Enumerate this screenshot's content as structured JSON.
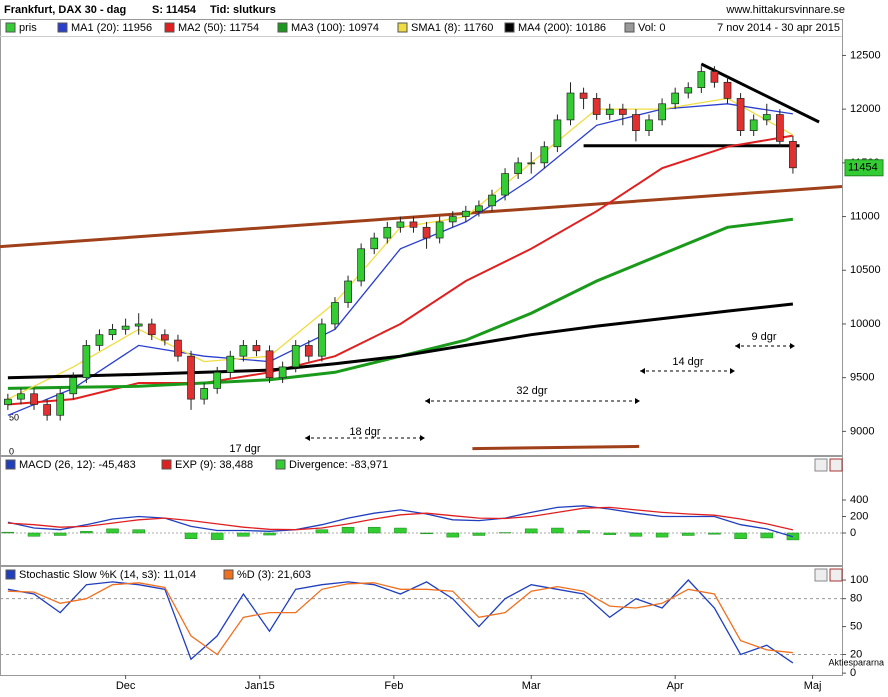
{
  "header": {
    "title": "Frankfurt, DAX 30 - dag",
    "last": "S: 11454",
    "mode": "Tid: slutkurs",
    "site": "www.hittakursvinnare.se",
    "range": "7 nov 2014 - 30 apr 2015",
    "watermark": "Aktiespararna"
  },
  "chart_data": [
    {
      "type": "candlestick",
      "xlim": [
        -1.2,
        127.5
      ],
      "ylim": [
        8780,
        12830
      ],
      "yticks": [
        9000,
        9500,
        10000,
        10500,
        11000,
        11500,
        12000,
        12500
      ],
      "xticks": [
        {
          "value": 18,
          "label": "Dec"
        },
        {
          "value": 38.5,
          "label": "Jan15"
        },
        {
          "value": 59,
          "label": "Feb"
        },
        {
          "value": 80,
          "label": "Mar"
        },
        {
          "value": 102,
          "label": "Apr"
        },
        {
          "value": 123,
          "label": "Maj"
        }
      ],
      "candles": {
        "name": "pris",
        "color": "#33cc33",
        "down_color": "#e03030",
        "x": [
          0,
          2,
          4,
          6,
          8,
          10,
          12,
          14,
          16,
          18,
          20,
          22,
          24,
          26,
          28,
          30,
          32,
          34,
          36,
          38,
          40,
          42,
          44,
          46,
          48,
          50,
          52,
          54,
          56,
          58,
          60,
          62,
          64,
          66,
          68,
          70,
          72,
          74,
          76,
          78,
          80,
          82,
          84,
          86,
          88,
          90,
          92,
          94,
          96,
          98,
          100,
          102,
          104,
          106,
          108,
          110,
          112,
          114,
          116,
          118,
          120
        ],
        "ohlc": [
          [
            9250,
            9350,
            9200,
            9300
          ],
          [
            9300,
            9400,
            9250,
            9350
          ],
          [
            9350,
            9400,
            9200,
            9250
          ],
          [
            9250,
            9300,
            9100,
            9150
          ],
          [
            9150,
            9400,
            9100,
            9350
          ],
          [
            9350,
            9550,
            9300,
            9500
          ],
          [
            9500,
            9850,
            9450,
            9800
          ],
          [
            9800,
            9950,
            9750,
            9900
          ],
          [
            9900,
            10000,
            9850,
            9950
          ],
          [
            9950,
            10050,
            9900,
            9980
          ],
          [
            9980,
            10100,
            9900,
            10000
          ],
          [
            10000,
            10050,
            9850,
            9900
          ],
          [
            9900,
            9950,
            9800,
            9850
          ],
          [
            9850,
            9900,
            9650,
            9700
          ],
          [
            9700,
            9750,
            9200,
            9300
          ],
          [
            9300,
            9450,
            9250,
            9400
          ],
          [
            9400,
            9600,
            9350,
            9550
          ],
          [
            9550,
            9750,
            9500,
            9700
          ],
          [
            9700,
            9850,
            9650,
            9800
          ],
          [
            9800,
            9850,
            9700,
            9750
          ],
          [
            9750,
            9800,
            9450,
            9500
          ],
          [
            9500,
            9650,
            9450,
            9600
          ],
          [
            9600,
            9850,
            9550,
            9800
          ],
          [
            9800,
            9850,
            9650,
            9700
          ],
          [
            9700,
            10050,
            9650,
            10000
          ],
          [
            10000,
            10250,
            9950,
            10200
          ],
          [
            10200,
            10450,
            10150,
            10400
          ],
          [
            10400,
            10750,
            10350,
            10700
          ],
          [
            10700,
            10850,
            10650,
            10800
          ],
          [
            10800,
            10950,
            10750,
            10900
          ],
          [
            10900,
            11000,
            10850,
            10950
          ],
          [
            10950,
            11000,
            10850,
            10900
          ],
          [
            10900,
            10950,
            10700,
            10800
          ],
          [
            10800,
            11000,
            10750,
            10950
          ],
          [
            10950,
            11050,
            10900,
            11000
          ],
          [
            11000,
            11100,
            10950,
            11050
          ],
          [
            11050,
            11150,
            11000,
            11100
          ],
          [
            11100,
            11250,
            11050,
            11200
          ],
          [
            11200,
            11450,
            11150,
            11400
          ],
          [
            11400,
            11550,
            11350,
            11500
          ],
          [
            11500,
            11600,
            11400,
            11500
          ],
          [
            11500,
            11700,
            11450,
            11650
          ],
          [
            11650,
            11950,
            11600,
            11900
          ],
          [
            11900,
            12250,
            11850,
            12150
          ],
          [
            12150,
            12200,
            12000,
            12100
          ],
          [
            12100,
            12150,
            11900,
            11950
          ],
          [
            11950,
            12050,
            11900,
            12000
          ],
          [
            12000,
            12050,
            11850,
            11950
          ],
          [
            11950,
            12000,
            11700,
            11800
          ],
          [
            11800,
            11950,
            11750,
            11900
          ],
          [
            11900,
            12100,
            11850,
            12050
          ],
          [
            12050,
            12200,
            12000,
            12150
          ],
          [
            12150,
            12250,
            12100,
            12200
          ],
          [
            12200,
            12400,
            12150,
            12350
          ],
          [
            12350,
            12400,
            12200,
            12250
          ],
          [
            12250,
            12300,
            12050,
            12100
          ],
          [
            12100,
            12150,
            11750,
            11800
          ],
          [
            11800,
            11950,
            11750,
            11900
          ],
          [
            11900,
            12050,
            11850,
            11950
          ],
          [
            11950,
            12000,
            11650,
            11700
          ],
          [
            11700,
            11750,
            11400,
            11454
          ]
        ]
      },
      "ma_x": [
        0,
        10,
        20,
        30,
        40,
        50,
        60,
        70,
        80,
        90,
        100,
        110,
        120
      ],
      "series": [
        {
          "name": "MA1 (20): 11956",
          "color": "#2a3fd0",
          "values": [
            9150,
            9400,
            9800,
            9700,
            9650,
            9950,
            10700,
            10950,
            11350,
            11850,
            12000,
            12050,
            11956
          ]
        },
        {
          "name": "MA2 (50): 11754",
          "color": "#e02020",
          "values": [
            9250,
            9300,
            9450,
            9450,
            9550,
            9700,
            10000,
            10400,
            10700,
            11050,
            11450,
            11650,
            11754
          ]
        },
        {
          "name": "MA3 (100): 10974",
          "color": "#1a9a1a",
          "values": [
            9400,
            9410,
            9420,
            9450,
            9480,
            9550,
            9700,
            9850,
            10100,
            10400,
            10650,
            10900,
            10974
          ]
        },
        {
          "name": "SMA1 (8): 11760",
          "color": "#f0dc40",
          "values": [
            9300,
            9600,
            9950,
            9650,
            9700,
            10200,
            10900,
            11000,
            11500,
            12000,
            12000,
            12100,
            11760
          ]
        },
        {
          "name": "MA4 (200): 10186",
          "color": "#000000",
          "values": [
            9500,
            9515,
            9530,
            9550,
            9570,
            9630,
            9700,
            9800,
            9900,
            9980,
            10050,
            10120,
            10186
          ]
        }
      ],
      "volume": {
        "name": "Vol: 0",
        "color": "#999999",
        "ticks": [
          50,
          0
        ]
      },
      "last_price": 11454,
      "trendlines": [
        {
          "color": "#a0401a",
          "x": [
            -1.2,
            127.5
          ],
          "values": [
            10720,
            11280
          ]
        },
        {
          "color": "#a0401a",
          "x": [
            71,
            96.5
          ],
          "values": [
            8840,
            8860
          ]
        },
        {
          "color": "#000000",
          "x": [
            106,
            124
          ],
          "values": [
            12420,
            11880
          ]
        },
        {
          "color": "#000000",
          "x": [
            88,
            121
          ],
          "values": [
            11660,
            11660
          ]
        }
      ],
      "annotations": [
        "17 dgr",
        "18 dgr",
        "32 dgr",
        "14 dgr",
        "9 dgr"
      ]
    },
    {
      "type": "macd",
      "x": [
        0,
        4,
        8,
        12,
        16,
        20,
        24,
        28,
        32,
        36,
        40,
        44,
        48,
        52,
        56,
        60,
        64,
        68,
        72,
        76,
        80,
        84,
        88,
        92,
        96,
        100,
        104,
        108,
        112,
        116,
        120
      ],
      "ylim": [
        -388,
        921
      ],
      "yticks": [
        0,
        200,
        400
      ],
      "series": [
        {
          "name": "MACD (26, 12): -45,483",
          "color": "#1f3fbf",
          "kind": "line",
          "values": [
            130,
            60,
            40,
            100,
            170,
            200,
            180,
            80,
            30,
            30,
            20,
            40,
            100,
            180,
            240,
            280,
            230,
            160,
            150,
            180,
            250,
            310,
            330,
            290,
            240,
            200,
            200,
            200,
            100,
            50,
            -45
          ]
        },
        {
          "name": "EXP (9): 38,488",
          "color": "#e02020",
          "kind": "line",
          "values": [
            120,
            100,
            70,
            80,
            120,
            160,
            180,
            150,
            110,
            70,
            45,
            40,
            60,
            110,
            170,
            220,
            240,
            210,
            180,
            175,
            200,
            250,
            300,
            310,
            280,
            250,
            230,
            215,
            170,
            110,
            38
          ]
        },
        {
          "name": "Divergence: -83,971",
          "color": "#33cc33",
          "kind": "bar",
          "values": [
            10,
            -40,
            -30,
            20,
            50,
            40,
            0,
            -70,
            -80,
            -40,
            -25,
            0,
            40,
            70,
            70,
            60,
            -10,
            -50,
            -30,
            5,
            50,
            60,
            30,
            -20,
            -40,
            -50,
            -30,
            -15,
            -70,
            -60,
            -84
          ]
        }
      ]
    },
    {
      "type": "stochastic",
      "x": [
        0,
        4,
        8,
        12,
        16,
        20,
        24,
        28,
        32,
        36,
        40,
        44,
        48,
        52,
        56,
        60,
        64,
        68,
        72,
        76,
        80,
        84,
        88,
        92,
        96,
        100,
        104,
        108,
        112,
        116,
        120
      ],
      "ylim": [
        -2,
        114
      ],
      "yticks": [
        0,
        20,
        50,
        80,
        100
      ],
      "reference_lines": [
        20,
        80
      ],
      "series": [
        {
          "name": "Stochastic Slow %K (14, s3): 11,014",
          "color": "#1f3fbf",
          "values": [
            90,
            85,
            65,
            95,
            98,
            95,
            90,
            15,
            40,
            85,
            45,
            90,
            95,
            98,
            95,
            85,
            98,
            80,
            50,
            80,
            95,
            90,
            85,
            60,
            80,
            70,
            100,
            70,
            20,
            30,
            11
          ]
        },
        {
          "name": "%D (3): 21,603",
          "color": "#f07020",
          "values": [
            88,
            87,
            75,
            80,
            95,
            97,
            92,
            40,
            20,
            60,
            65,
            65,
            90,
            96,
            97,
            90,
            90,
            88,
            60,
            65,
            88,
            93,
            88,
            72,
            70,
            75,
            90,
            85,
            35,
            25,
            22
          ]
        }
      ]
    }
  ]
}
